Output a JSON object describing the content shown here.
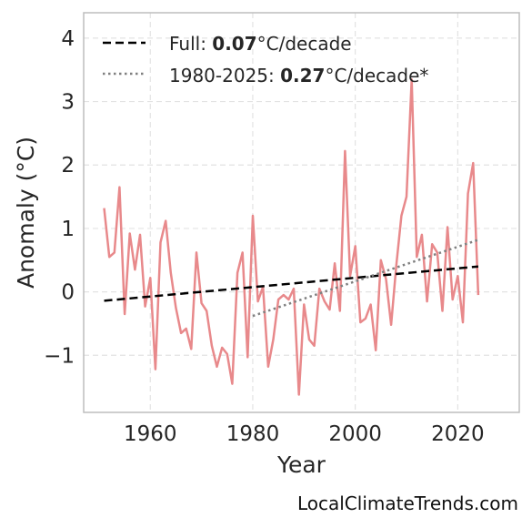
{
  "chart_data": {
    "type": "line",
    "xlabel": "Year",
    "ylabel": "Anomaly (°C)",
    "xlim": [
      1947,
      2032
    ],
    "ylim": [
      -1.9,
      4.4
    ],
    "xticks": [
      1960,
      1980,
      2000,
      2020
    ],
    "yticks": [
      -1,
      0,
      1,
      2,
      3,
      4
    ],
    "ytick_labels": [
      "−1",
      "0",
      "1",
      "2",
      "3",
      "4"
    ],
    "grid": true,
    "legend_position": "top-left",
    "colors": {
      "series": "#e8898b",
      "full_trend": "#000000",
      "recent_trend": "#808080"
    },
    "series": [
      {
        "x": [
          1951,
          1952,
          1953,
          1954,
          1955,
          1956,
          1957,
          1958,
          1959,
          1960,
          1961,
          1962,
          1963,
          1964,
          1965,
          1966,
          1967,
          1968,
          1969,
          1970,
          1971,
          1972,
          1973,
          1974,
          1975,
          1976,
          1977,
          1978,
          1979,
          1980,
          1981,
          1982,
          1983,
          1984,
          1985,
          1986,
          1987,
          1988,
          1989,
          1990,
          1991,
          1992,
          1993,
          1994,
          1995,
          1996,
          1997,
          1998,
          1999,
          2000,
          2001,
          2002,
          2003,
          2004,
          2005,
          2006,
          2007,
          2008,
          2009,
          2010,
          2011,
          2012,
          2013,
          2014,
          2015,
          2016,
          2017,
          2018,
          2019,
          2020,
          2021,
          2022,
          2023,
          2024
        ],
        "values": [
          1.32,
          0.55,
          0.62,
          1.65,
          -0.35,
          0.92,
          0.35,
          0.9,
          -0.23,
          0.22,
          -1.22,
          0.78,
          1.12,
          0.3,
          -0.25,
          -0.65,
          -0.58,
          -0.9,
          0.62,
          -0.18,
          -0.3,
          -0.85,
          -1.18,
          -0.88,
          -0.98,
          -1.45,
          0.3,
          0.62,
          -1.03,
          1.2,
          -0.15,
          0.08,
          -1.18,
          -0.75,
          -0.12,
          -0.05,
          -0.12,
          0.05,
          -1.62,
          -0.2,
          -0.75,
          -0.85,
          0.05,
          -0.15,
          -0.28,
          0.45,
          -0.3,
          2.22,
          0.25,
          0.72,
          -0.48,
          -0.42,
          -0.2,
          -0.92,
          0.5,
          0.2,
          -0.52,
          0.42,
          1.2,
          1.5,
          3.35,
          0.55,
          0.9,
          -0.15,
          0.75,
          0.62,
          -0.3,
          1.02,
          -0.12,
          0.25,
          -0.48,
          1.55,
          2.03,
          -0.05
        ]
      }
    ],
    "trends": [
      {
        "style": "dashed",
        "x": [
          1951,
          2024
        ],
        "y": [
          -0.14,
          0.4
        ],
        "label_prefix": "Full: ",
        "label_value": "0.07",
        "label_suffix": "°C/decade"
      },
      {
        "style": "dotted",
        "x": [
          1980,
          2024
        ],
        "y": [
          -0.38,
          0.82
        ],
        "label_prefix": "1980-2025: ",
        "label_value": "0.27",
        "label_suffix": "°C/decade*"
      }
    ]
  },
  "watermark": "LocalClimateTrends.com"
}
